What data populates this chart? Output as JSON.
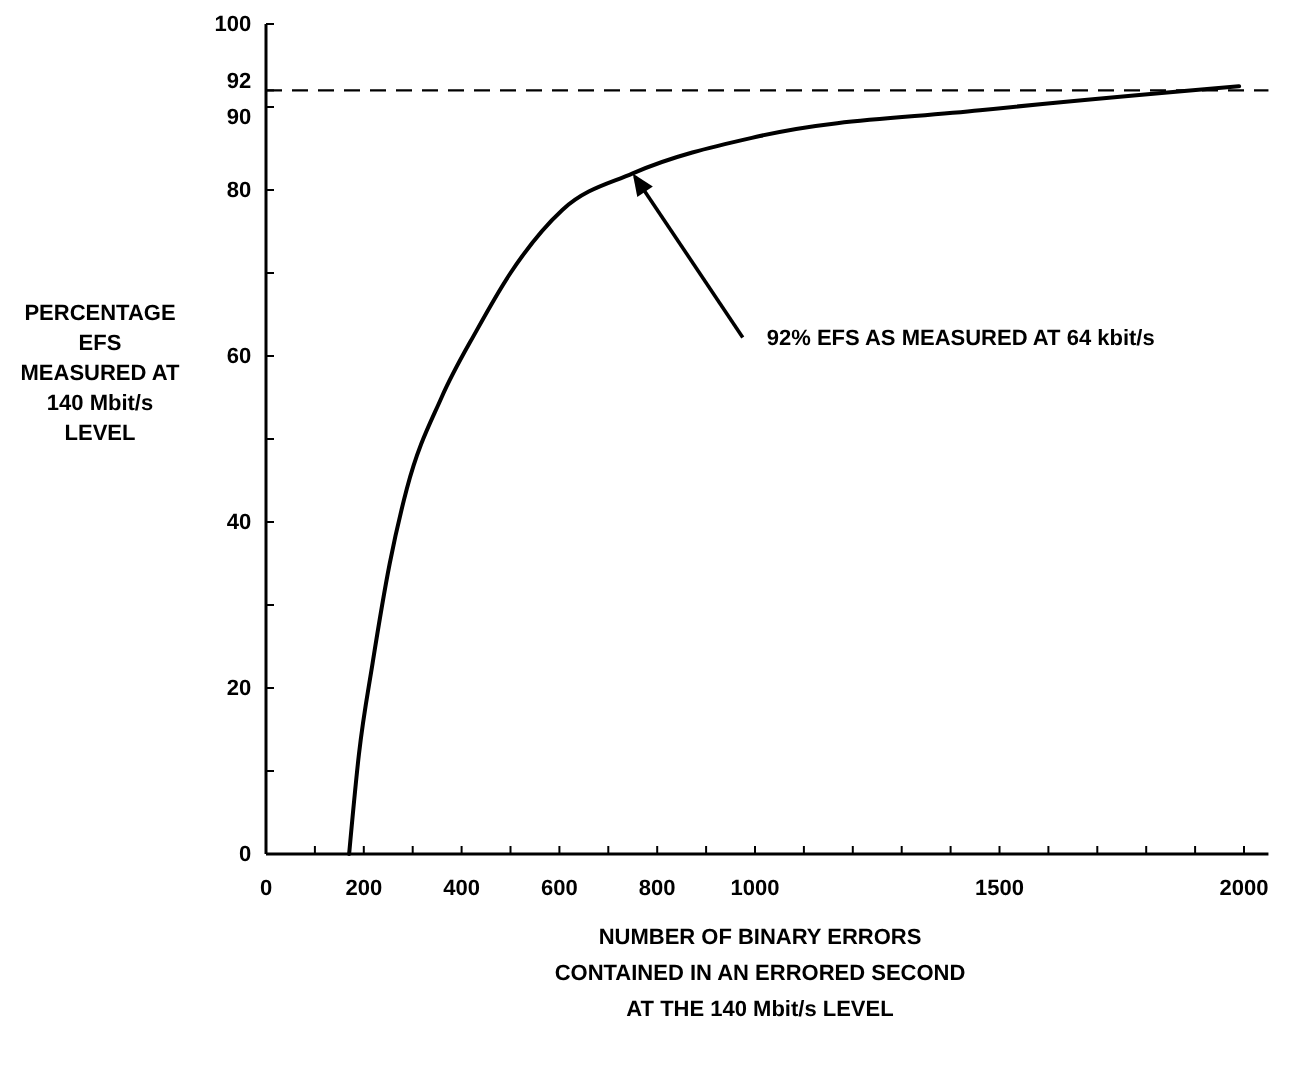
{
  "chart_data": {
    "type": "line",
    "xlabel": "NUMBER OF BINARY ERRORS CONTAINED IN AN ERRORED SECOND AT THE 140 Mbit/s LEVEL",
    "ylabel": "PERCENTAGE EFS MEASURED AT 140 Mbit/s LEVEL",
    "x": [
      170,
      190,
      218,
      253,
      288,
      359,
      430,
      500,
      606,
      750,
      1010,
      1460,
      1990
    ],
    "series": [
      {
        "color": "#000000",
        "values": [
          0,
          12,
          23,
          35,
          44,
          55,
          63,
          70,
          77.6,
          82,
          86.5,
          89.6,
          92.5
        ]
      }
    ],
    "xlim": [
      0,
      2050
    ],
    "ylim": [
      0,
      100
    ],
    "xticks": [
      0,
      {
        "value": 100,
        "label": null
      },
      200,
      {
        "value": 300,
        "label": null
      },
      400,
      {
        "value": 500,
        "label": null
      },
      600,
      {
        "value": 700,
        "label": null
      },
      800,
      {
        "value": 900,
        "label": null
      },
      1000,
      {
        "value": 1100,
        "label": null
      },
      {
        "value": 1200,
        "label": null
      },
      {
        "value": 1300,
        "label": null
      },
      {
        "value": 1400,
        "label": null
      },
      1500,
      {
        "value": 1600,
        "label": null
      },
      {
        "value": 1700,
        "label": null
      },
      {
        "value": 1800,
        "label": null
      },
      {
        "value": 1900,
        "label": null
      },
      2000
    ],
    "yticks": [
      0,
      {
        "value": 10,
        "label": null
      },
      20,
      {
        "value": 30,
        "label": null
      },
      40,
      {
        "value": 50,
        "label": null
      },
      60,
      {
        "value": 70,
        "label": null
      },
      80,
      90,
      92,
      100
    ],
    "ref_lines": [
      {
        "axis": "y",
        "value": 92,
        "line_style": "dashed",
        "color": "#000000"
      }
    ],
    "annotations": [
      {
        "text": "92% EFS AS MEASURED AT 64 kbit/s",
        "x": 750,
        "y": 82
      }
    ],
    "grid": false,
    "marker": "none",
    "line_style": "solid"
  }
}
